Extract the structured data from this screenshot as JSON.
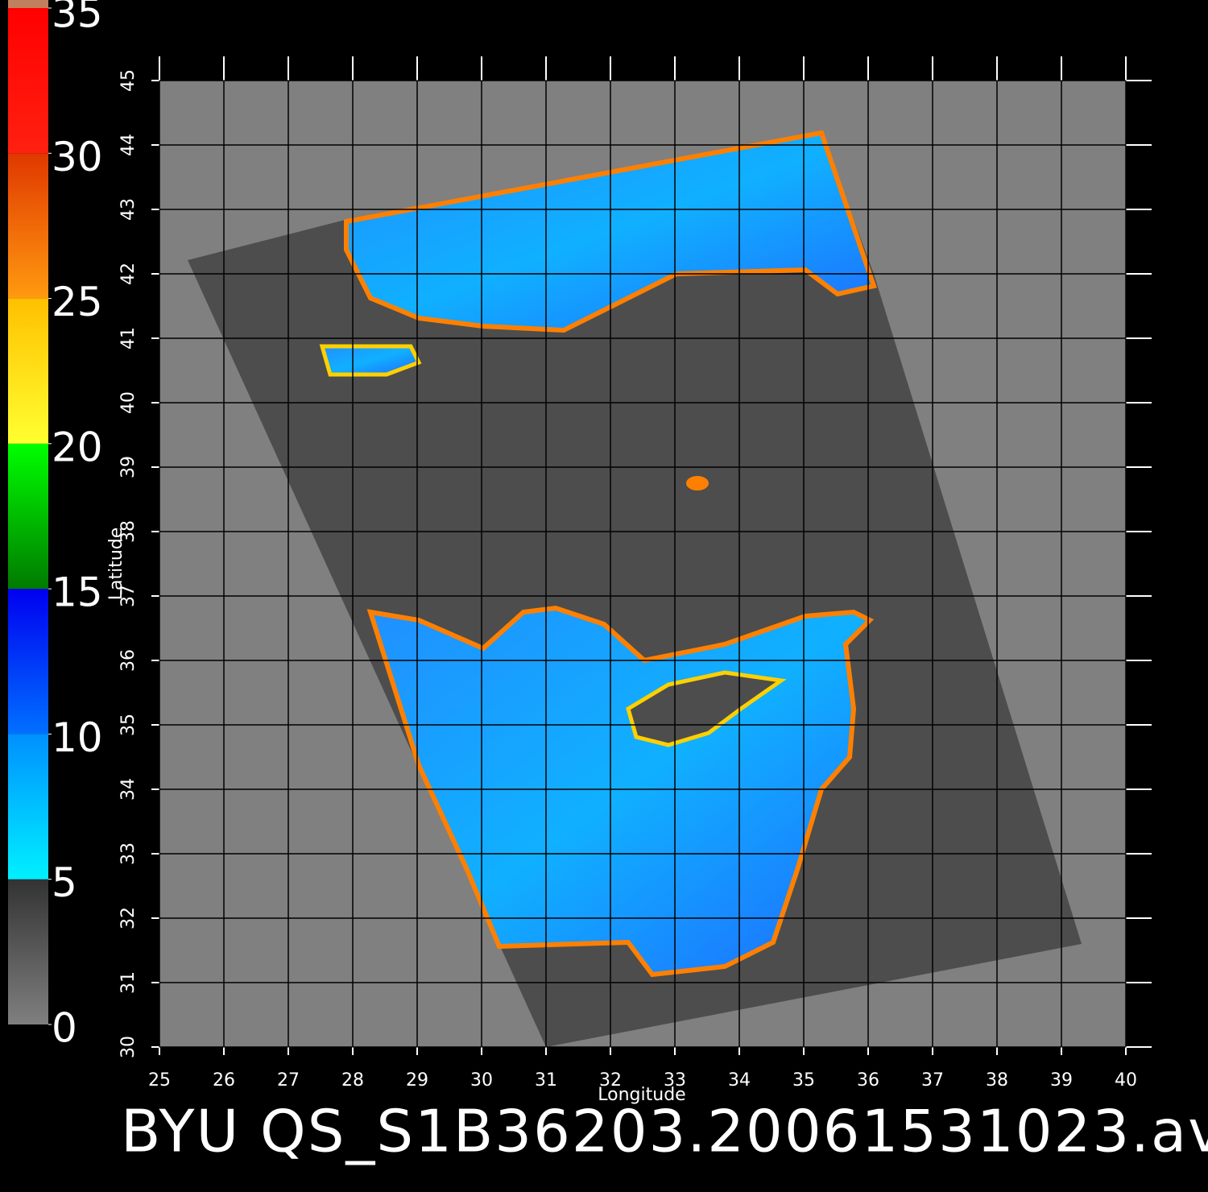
{
  "chart_data": {
    "type": "map",
    "title": "BYU QS_S1B36203.20061531023.av",
    "x_label": "Longitude",
    "y_label": "Latitude",
    "xlim": [
      25,
      40
    ],
    "ylim": [
      30,
      45
    ],
    "xticks": [
      25,
      26,
      27,
      28,
      29,
      30,
      31,
      32,
      33,
      34,
      35,
      36,
      37,
      38,
      39,
      40
    ],
    "yticks": [
      30,
      31,
      32,
      33,
      34,
      35,
      36,
      37,
      38,
      39,
      40,
      41,
      42,
      43,
      44,
      45
    ],
    "grid": true,
    "colorbar": {
      "lim": [
        0,
        35
      ],
      "ticks": [
        0,
        5,
        10,
        15,
        20,
        25,
        30,
        35
      ],
      "colors": [
        [
          "#7f7f7f",
          "#333333"
        ],
        [
          "#00f0ff",
          "#0090ff"
        ],
        [
          "#0070ff",
          "#0000f0"
        ],
        [
          "#007a00",
          "#00ff00"
        ],
        [
          "#ffff30",
          "#ffc000"
        ],
        [
          "#ff9a10",
          "#e03800"
        ],
        [
          "#ff2010",
          "#ff0000"
        ]
      ]
    }
  }
}
